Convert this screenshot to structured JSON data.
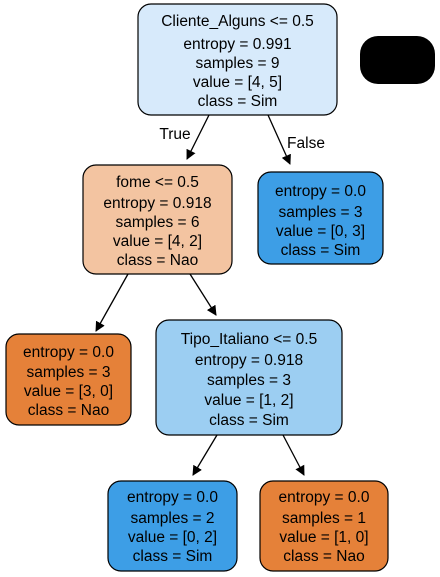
{
  "colors": {
    "root": "#d7eafb",
    "fome": "#f3c4a1",
    "sim_right": "#3d9ee6",
    "nao_leaf": "#e58139",
    "tipo_italiano": "#9ccef2",
    "sim_leaf": "#3d9ee6",
    "nao_leaf_right": "#e58139",
    "redaction": "#000000"
  },
  "nodes": {
    "root": {
      "lines": [
        "Cliente_Alguns <= 0.5",
        "entropy = 0.991",
        "samples = 9",
        "value = [4, 5]",
        "class = Sim"
      ]
    },
    "fome": {
      "lines": [
        "fome <= 0.5",
        "entropy = 0.918",
        "samples = 6",
        "value = [4, 2]",
        "class = Nao"
      ]
    },
    "sim_right": {
      "lines": [
        "entropy = 0.0",
        "samples = 3",
        "value = [0, 3]",
        "class = Sim"
      ]
    },
    "nao_leaf": {
      "lines": [
        "entropy = 0.0",
        "samples = 3",
        "value = [3, 0]",
        "class = Nao"
      ]
    },
    "tipo_italiano": {
      "lines": [
        "Tipo_Italiano <= 0.5",
        "entropy = 0.918",
        "samples = 3",
        "value = [1, 2]",
        "class = Sim"
      ]
    },
    "sim_leaf": {
      "lines": [
        "entropy = 0.0",
        "samples = 2",
        "value = [0, 2]",
        "class = Sim"
      ]
    },
    "nao_leaf_right": {
      "lines": [
        "entropy = 0.0",
        "samples = 1",
        "value = [1, 0]",
        "class = Nao"
      ]
    }
  },
  "edge_labels": {
    "true": "True",
    "false": "False"
  }
}
